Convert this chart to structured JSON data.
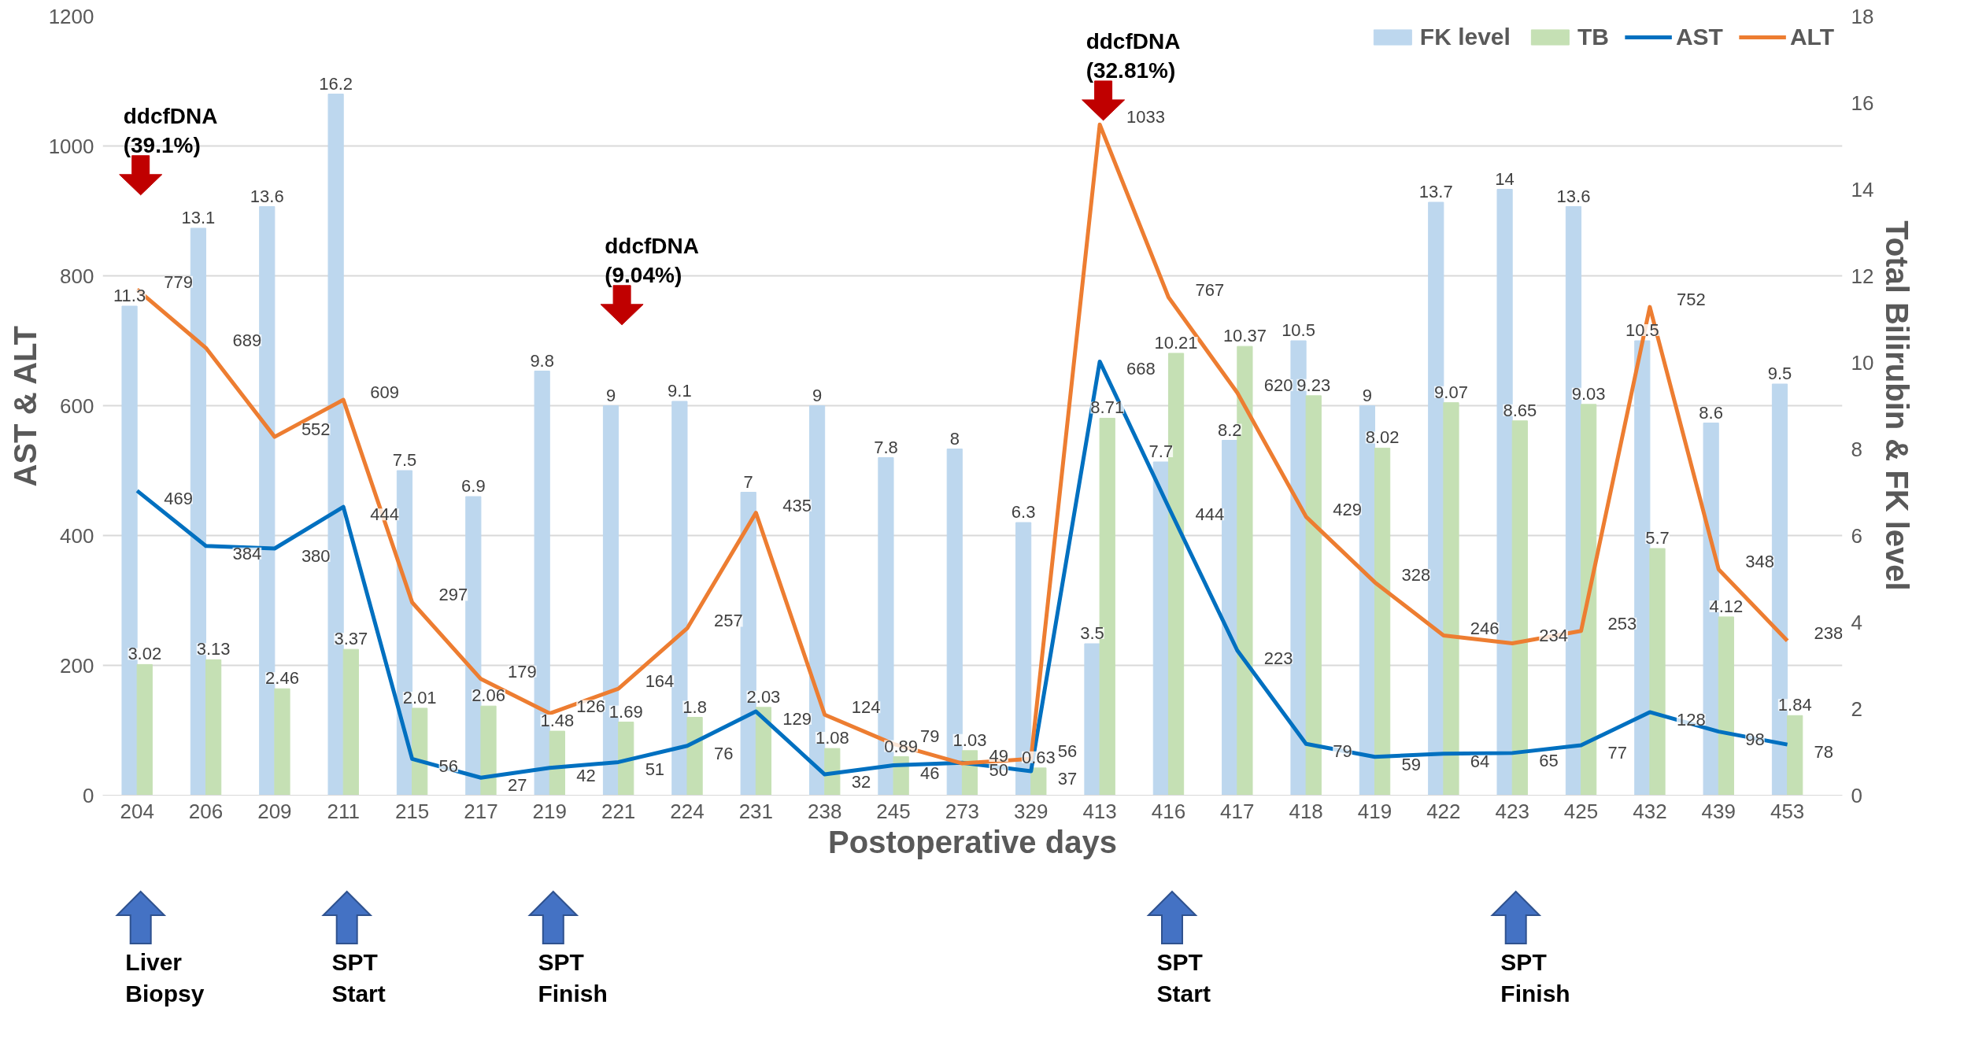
{
  "chart_data": {
    "type": "bar",
    "xlabel": "Postoperative days",
    "ylabel": "AST & ALT",
    "y2label": "Total Bilirubin & FK level",
    "categories": [
      "204",
      "206",
      "209",
      "211",
      "215",
      "217",
      "219",
      "221",
      "224",
      "231",
      "238",
      "245",
      "273",
      "329",
      "413",
      "416",
      "417",
      "418",
      "419",
      "422",
      "423",
      "425",
      "432",
      "439",
      "453"
    ],
    "series": [
      {
        "name": "FK level",
        "axis": "y2",
        "color": "#bdd7ee",
        "values": [
          11.3,
          13.1,
          13.6,
          16.2,
          7.5,
          6.9,
          9.8,
          9,
          9.1,
          7,
          9,
          7.8,
          8,
          6.3,
          3.5,
          7.7,
          8.2,
          10.5,
          9,
          13.7,
          14,
          13.6,
          10.5,
          8.6,
          9.5
        ]
      },
      {
        "name": "TB",
        "axis": "y2",
        "color": "#c5e0b4",
        "values": [
          3.02,
          3.13,
          2.46,
          3.37,
          2.01,
          2.06,
          1.48,
          1.69,
          1.8,
          2.03,
          1.08,
          0.89,
          1.03,
          0.63,
          8.71,
          10.21,
          10.37,
          9.23,
          8.02,
          9.07,
          8.65,
          9.03,
          5.7,
          4.12,
          1.84
        ]
      },
      {
        "name": "AST",
        "type": "line",
        "color": "#0070c0",
        "values": [
          469,
          384,
          380,
          444,
          56,
          27,
          42,
          51,
          76,
          129,
          32,
          46,
          50,
          37,
          668,
          444,
          223,
          79,
          59,
          64,
          65,
          77,
          128,
          98,
          78
        ]
      },
      {
        "name": "ALT",
        "type": "line",
        "color": "#ed7d31",
        "values": [
          779,
          689,
          552,
          609,
          297,
          179,
          126,
          164,
          257,
          435,
          124,
          79,
          49,
          56,
          1033,
          767,
          620,
          429,
          328,
          246,
          234,
          253,
          752,
          348,
          238
        ]
      }
    ],
    "ylim": [
      0,
      1200
    ],
    "yticks": [
      0,
      200,
      400,
      600,
      800,
      1000,
      1200
    ],
    "y2lim": [
      0,
      18
    ],
    "y2ticks": [
      0,
      2,
      4,
      6,
      8,
      10,
      12,
      14,
      16,
      18
    ],
    "grid": "y",
    "legend": "top right",
    "data_labels": true,
    "marker": "none",
    "line_style": "solid",
    "annotations": [
      "ddcfDNA (39.1%)",
      "ddcfDNA (9.04%)",
      "ddcfDNA (32.81%)",
      "Liver Biopsy",
      "SPT Start",
      "SPT Finish",
      "SPT Start",
      "SPT Finish"
    ]
  }
}
